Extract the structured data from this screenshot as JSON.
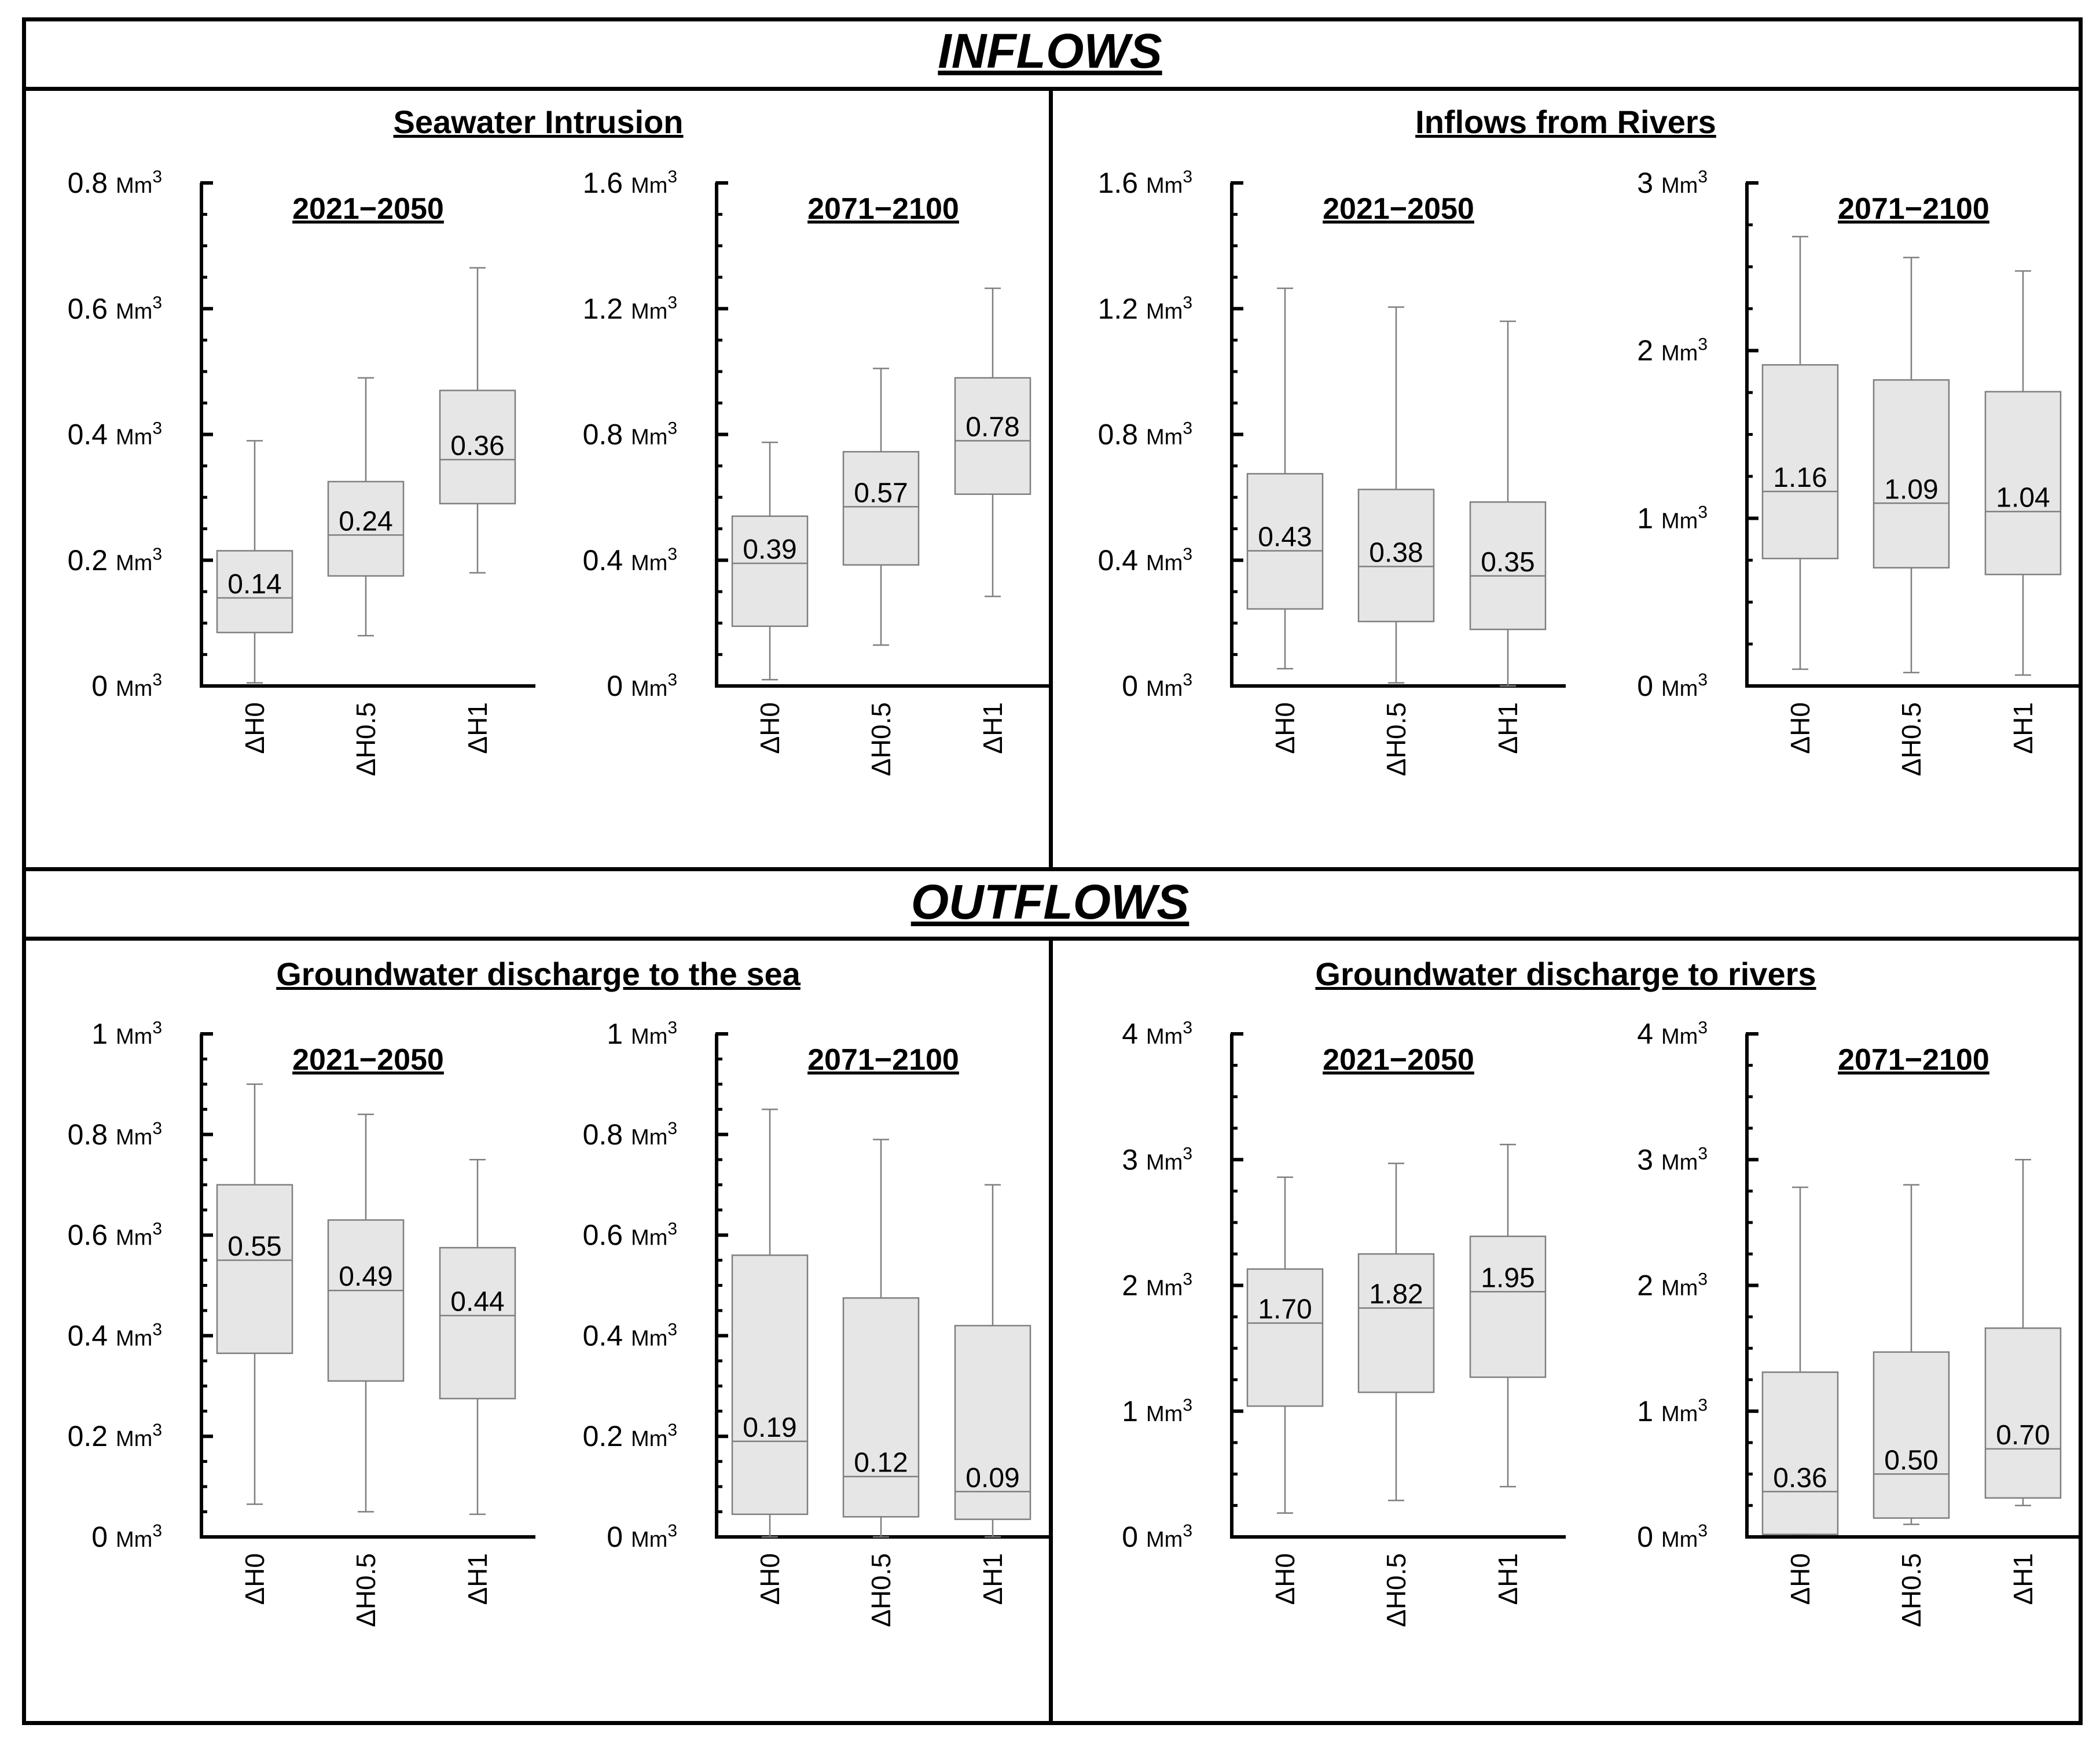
{
  "sections": {
    "inflows": "INFLOWS",
    "outflows": "OUTFLOWS"
  },
  "panels": [
    {
      "title": "Seawater Intrusion"
    },
    {
      "title": "Inflows from Rivers"
    },
    {
      "title": "Groundwater discharge to the sea"
    },
    {
      "title": "Groundwater discharge to rivers"
    }
  ],
  "units": {
    "main": "Mm",
    "sup": "3"
  },
  "colors": {
    "box_fill": "#e6e6e6",
    "box_stroke": "#7f7f7f",
    "axis": "#000000"
  },
  "chart_data": [
    {
      "type": "boxplot",
      "panel": "Seawater Intrusion",
      "title": "2021−2050",
      "categories": [
        "ΔH0",
        "ΔH0.5",
        "ΔH1"
      ],
      "ylim": [
        0,
        0.8
      ],
      "yticks": [
        0,
        0.2,
        0.4,
        0.6,
        0.8
      ],
      "ytick_labels": [
        "0",
        "0.2",
        "0.4",
        "0.6",
        "0.8"
      ],
      "ylabel_unit": "Mm³",
      "series": [
        {
          "min": 0.005,
          "q1": 0.085,
          "median": 0.14,
          "q3": 0.215,
          "max": 0.39,
          "label": "0.14"
        },
        {
          "min": 0.08,
          "q1": 0.175,
          "median": 0.24,
          "q3": 0.325,
          "max": 0.49,
          "label": "0.24"
        },
        {
          "min": 0.18,
          "q1": 0.29,
          "median": 0.36,
          "q3": 0.47,
          "max": 0.665,
          "label": "0.36"
        }
      ]
    },
    {
      "type": "boxplot",
      "panel": "Seawater Intrusion",
      "title": "2071−2100",
      "categories": [
        "ΔH0",
        "ΔH0.5",
        "ΔH1"
      ],
      "ylim": [
        0,
        1.6
      ],
      "yticks": [
        0,
        0.4,
        0.8,
        1.2,
        1.6
      ],
      "ytick_labels": [
        "0",
        "0.4",
        "0.8",
        "1.2",
        "1.6"
      ],
      "ylabel_unit": "Mm³",
      "series": [
        {
          "min": 0.02,
          "q1": 0.19,
          "median": 0.39,
          "q3": 0.54,
          "max": 0.775,
          "label": "0.39"
        },
        {
          "min": 0.13,
          "q1": 0.385,
          "median": 0.57,
          "q3": 0.745,
          "max": 1.01,
          "label": "0.57"
        },
        {
          "min": 0.285,
          "q1": 0.61,
          "median": 0.78,
          "q3": 0.98,
          "max": 1.265,
          "label": "0.78"
        }
      ]
    },
    {
      "type": "boxplot",
      "panel": "Inflows from Rivers",
      "title": "2021−2050",
      "categories": [
        "ΔH0",
        "ΔH0.5",
        "ΔH1"
      ],
      "ylim": [
        0,
        1.6
      ],
      "yticks": [
        0,
        0.4,
        0.8,
        1.2,
        1.6
      ],
      "ytick_labels": [
        "0",
        "0.4",
        "0.8",
        "1.2",
        "1.6"
      ],
      "ylabel_unit": "Mm³",
      "series": [
        {
          "min": 0.055,
          "q1": 0.245,
          "median": 0.43,
          "q3": 0.675,
          "max": 1.265,
          "label": "0.43"
        },
        {
          "min": 0.01,
          "q1": 0.205,
          "median": 0.38,
          "q3": 0.625,
          "max": 1.205,
          "label": "0.38"
        },
        {
          "min": 0.0,
          "q1": 0.18,
          "median": 0.35,
          "q3": 0.585,
          "max": 1.16,
          "label": "0.35"
        }
      ]
    },
    {
      "type": "boxplot",
      "panel": "Inflows from Rivers",
      "title": "2071−2100",
      "categories": [
        "ΔH0",
        "ΔH0.5",
        "ΔH1"
      ],
      "ylim": [
        0,
        3
      ],
      "yticks": [
        0,
        1,
        2,
        3
      ],
      "ytick_labels": [
        "0",
        "1",
        "2",
        "3"
      ],
      "ylabel_unit": "Mm³",
      "series": [
        {
          "min": 0.1,
          "q1": 0.76,
          "median": 1.16,
          "q3": 1.915,
          "max": 2.68,
          "label": "1.16"
        },
        {
          "min": 0.08,
          "q1": 0.705,
          "median": 1.09,
          "q3": 1.825,
          "max": 2.555,
          "label": "1.09"
        },
        {
          "min": 0.065,
          "q1": 0.665,
          "median": 1.04,
          "q3": 1.755,
          "max": 2.475,
          "label": "1.04"
        }
      ]
    },
    {
      "type": "boxplot",
      "panel": "Groundwater discharge to the sea",
      "title": "2021−2050",
      "categories": [
        "ΔH0",
        "ΔH0.5",
        "ΔH1"
      ],
      "ylim": [
        0,
        1
      ],
      "yticks": [
        0,
        0.2,
        0.4,
        0.6,
        0.8,
        1
      ],
      "ytick_labels": [
        "0",
        "0.2",
        "0.4",
        "0.6",
        "0.8",
        "1"
      ],
      "ylabel_unit": "Mm³",
      "series": [
        {
          "min": 0.065,
          "q1": 0.365,
          "median": 0.55,
          "q3": 0.7,
          "max": 0.9,
          "label": "0.55"
        },
        {
          "min": 0.05,
          "q1": 0.31,
          "median": 0.49,
          "q3": 0.63,
          "max": 0.84,
          "label": "0.49"
        },
        {
          "min": 0.045,
          "q1": 0.275,
          "median": 0.44,
          "q3": 0.575,
          "max": 0.75,
          "label": "0.44"
        }
      ]
    },
    {
      "type": "boxplot",
      "panel": "Groundwater discharge to the sea",
      "title": "2071−2100",
      "categories": [
        "ΔH0",
        "ΔH0.5",
        "ΔH1"
      ],
      "ylim": [
        0,
        1
      ],
      "yticks": [
        0,
        0.2,
        0.4,
        0.6,
        0.8,
        1
      ],
      "ytick_labels": [
        "0",
        "0.2",
        "0.4",
        "0.6",
        "0.8",
        "1"
      ],
      "ylabel_unit": "Mm³",
      "series": [
        {
          "min": 0.0,
          "q1": 0.045,
          "median": 0.19,
          "q3": 0.56,
          "max": 0.85,
          "label": "0.19"
        },
        {
          "min": 0.0,
          "q1": 0.04,
          "median": 0.12,
          "q3": 0.475,
          "max": 0.79,
          "label": "0.12"
        },
        {
          "min": 0.0,
          "q1": 0.035,
          "median": 0.09,
          "q3": 0.42,
          "max": 0.7,
          "label": "0.09"
        }
      ]
    },
    {
      "type": "boxplot",
      "panel": "Groundwater discharge to rivers",
      "title": "2021−2050",
      "categories": [
        "ΔH0",
        "ΔH0.5",
        "ΔH1"
      ],
      "ylim": [
        0,
        4
      ],
      "yticks": [
        0,
        1,
        2,
        3,
        4
      ],
      "ytick_labels": [
        "0",
        "1",
        "2",
        "3",
        "4"
      ],
      "ylabel_unit": "Mm³",
      "series": [
        {
          "min": 0.19,
          "q1": 1.04,
          "median": 1.7,
          "q3": 2.13,
          "max": 2.86,
          "label": "1.70"
        },
        {
          "min": 0.29,
          "q1": 1.15,
          "median": 1.82,
          "q3": 2.25,
          "max": 2.97,
          "label": "1.82"
        },
        {
          "min": 0.4,
          "q1": 1.27,
          "median": 1.95,
          "q3": 2.39,
          "max": 3.12,
          "label": "1.95"
        }
      ]
    },
    {
      "type": "boxplot",
      "panel": "Groundwater discharge to rivers",
      "title": "2071−2100",
      "categories": [
        "ΔH0",
        "ΔH0.5",
        "ΔH1"
      ],
      "ylim": [
        0,
        4
      ],
      "yticks": [
        0,
        1,
        2,
        3,
        4
      ],
      "ytick_labels": [
        "0",
        "1",
        "2",
        "3",
        "4"
      ],
      "ylabel_unit": "Mm³",
      "series": [
        {
          "min": 0.02,
          "q1": 0.02,
          "median": 0.36,
          "q3": 1.31,
          "max": 2.78,
          "label": "0.36"
        },
        {
          "min": 0.1,
          "q1": 0.15,
          "median": 0.5,
          "q3": 1.47,
          "max": 2.8,
          "label": "0.50"
        },
        {
          "min": 0.25,
          "q1": 0.31,
          "median": 0.7,
          "q3": 1.66,
          "max": 3.0,
          "label": "0.70"
        }
      ]
    }
  ]
}
